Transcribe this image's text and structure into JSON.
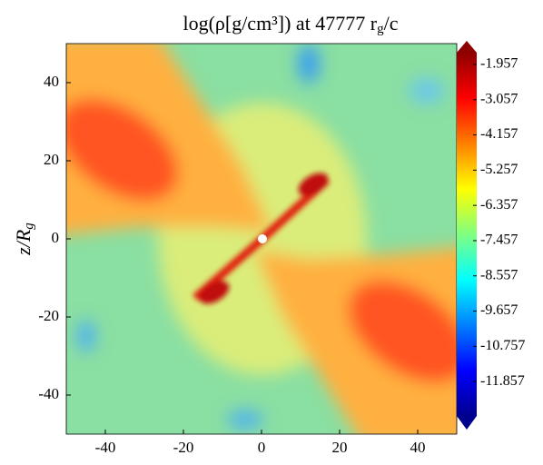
{
  "chart_data": {
    "type": "heatmap",
    "title": {
      "text": "log(ρ[g/cm³]) at 47777 r",
      "sub": "g",
      "tail": "/c"
    },
    "ylabel": {
      "text": "z/R",
      "sub": "g"
    },
    "xlim": [
      -50,
      50
    ],
    "ylim": [
      -50,
      50
    ],
    "xticks": [
      -40,
      -20,
      0,
      20,
      40
    ],
    "yticks": [
      -40,
      -20,
      0,
      20,
      40
    ],
    "colorbar": {
      "clim": [
        -12.93,
        -1.59
      ],
      "ticks": [
        -1.957,
        -3.057,
        -4.157,
        -5.257,
        -6.357,
        -7.457,
        -8.557,
        -9.657,
        -10.757,
        -11.857
      ]
    }
  }
}
